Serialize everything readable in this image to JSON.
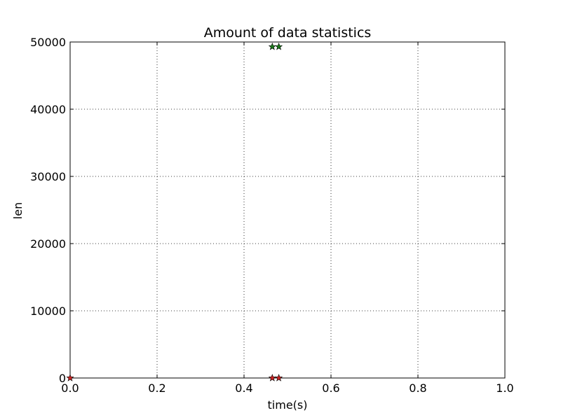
{
  "chart_data": {
    "type": "scatter",
    "title": "Amount of data statistics",
    "xlabel": "time(s)",
    "ylabel": "len",
    "xlim": [
      0.0,
      1.0
    ],
    "ylim": [
      0,
      50000
    ],
    "grid": true,
    "x_ticks": [
      0.0,
      0.2,
      0.4,
      0.6,
      0.8,
      1.0
    ],
    "x_tick_labels": [
      "0.0",
      "0.2",
      "0.4",
      "0.6",
      "0.8",
      "1.0"
    ],
    "y_ticks": [
      0,
      10000,
      20000,
      30000,
      40000,
      50000
    ],
    "y_tick_labels": [
      "0",
      "10000",
      "20000",
      "30000",
      "40000",
      "50000"
    ],
    "series": [
      {
        "marker": "star",
        "color": "#1a7a1a",
        "x": [
          0.465,
          0.48
        ],
        "y": [
          49300,
          49300
        ]
      },
      {
        "marker": "star",
        "color": "#cc2222",
        "x": [
          0.0,
          0.465,
          0.48
        ],
        "y": [
          0,
          0,
          0
        ]
      }
    ]
  }
}
